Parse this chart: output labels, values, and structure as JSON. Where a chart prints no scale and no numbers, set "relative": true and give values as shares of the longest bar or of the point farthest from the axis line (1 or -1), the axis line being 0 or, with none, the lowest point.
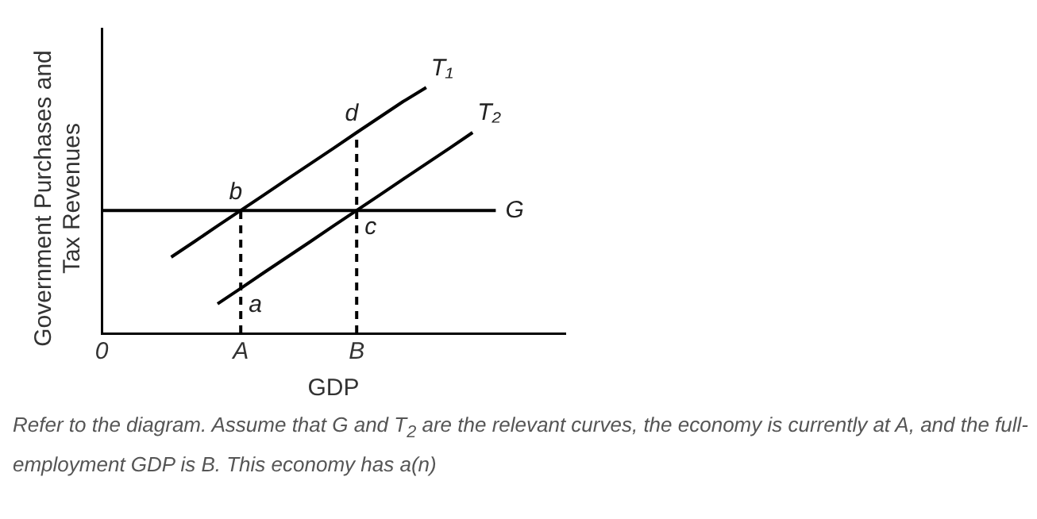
{
  "chart_data": {
    "type": "line",
    "relative": true,
    "xlabel": "GDP",
    "ylabel": "Government Purchases and Tax Revenues",
    "tick_labels": "x",
    "legend": false,
    "grid": false,
    "marker": "none",
    "categories": [
      "0",
      null,
      null,
      null,
      null,
      null,
      "A",
      null,
      null,
      null,
      null,
      "B",
      null,
      null,
      null,
      null,
      null,
      null,
      null,
      null,
      null
    ],
    "series": [
      {
        "name": "T₁",
        "color": "#000000",
        "values": [
          null,
          null,
          null,
          0.31,
          0.373,
          0.437,
          0.5,
          0.563,
          0.627,
          0.69,
          0.753,
          0.817,
          0.88,
          0.943,
          1.0,
          null,
          null,
          null,
          null,
          null,
          null
        ]
      },
      {
        "name": "T₂",
        "color": "#000000",
        "values": [
          null,
          null,
          null,
          null,
          null,
          0.12,
          0.183,
          0.247,
          0.31,
          0.373,
          0.437,
          0.5,
          0.563,
          0.627,
          0.69,
          0.753,
          0.817,
          null,
          null,
          null,
          null
        ]
      },
      {
        "name": "G",
        "color": "#000000",
        "values": [
          0.5,
          0.5,
          0.5,
          0.5,
          0.5,
          0.5,
          0.5,
          0.5,
          0.5,
          0.5,
          0.5,
          0.5,
          0.5,
          0.5,
          0.5,
          0.5,
          0.5,
          0.5,
          null,
          null,
          null
        ]
      }
    ],
    "ref_lines": [
      {
        "axis": "x",
        "value": "A",
        "color": "#000000",
        "line_style": "dashed"
      },
      {
        "axis": "x",
        "value": "B",
        "color": "#000000",
        "line_style": "dashed"
      }
    ],
    "annotations": [
      {
        "text": "a",
        "x": "A",
        "y": 0.183
      },
      {
        "text": "b",
        "x": "A",
        "y": 0.5
      },
      {
        "text": "c",
        "x": "B",
        "y": 0.5
      },
      {
        "text": "d",
        "x": "B",
        "y": 0.817
      },
      "Refer to the diagram. Assume that G and T$_{2}$ are the relevant curves, the economy is currently at A, and the full-employment GDP is B. This economy has a(n)"
    ]
  }
}
